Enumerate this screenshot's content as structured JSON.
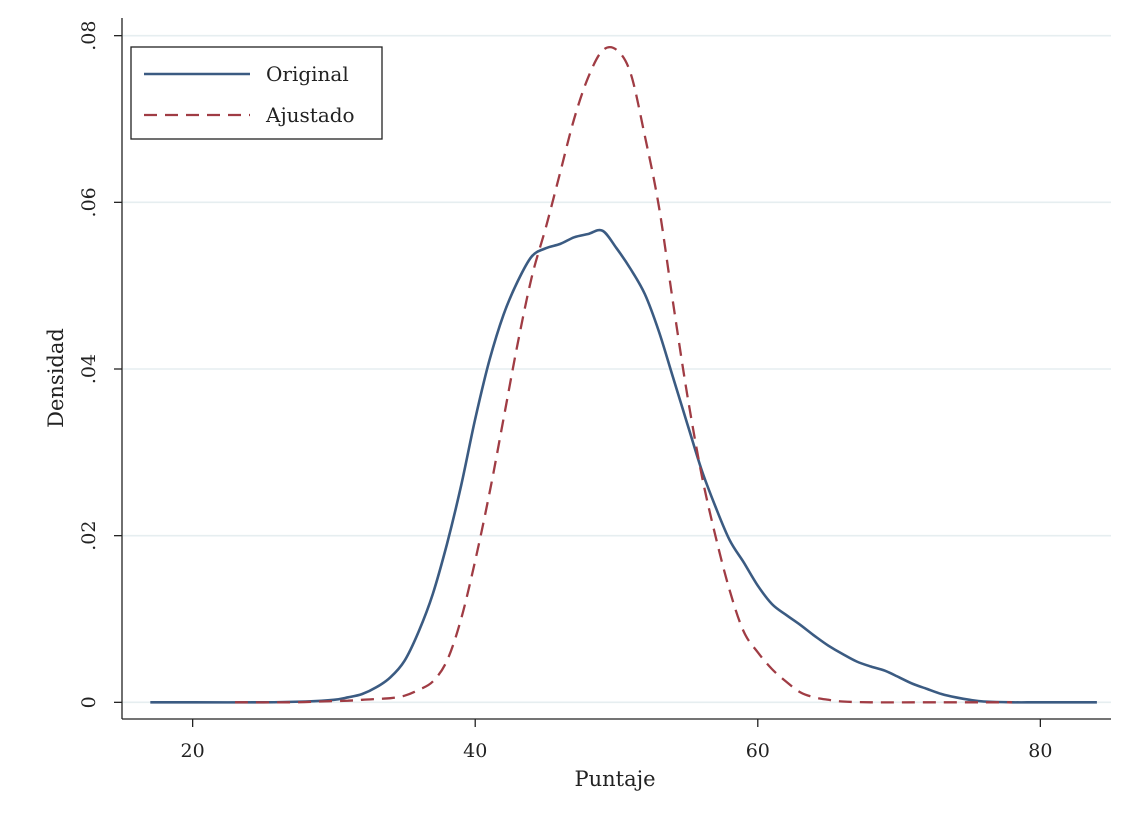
{
  "chart_data": {
    "type": "line",
    "title": "",
    "xlabel": "Puntaje",
    "ylabel": "Densidad",
    "xlim": [
      15,
      85
    ],
    "ylim": [
      -0.002,
      0.082
    ],
    "xticks": [
      20,
      40,
      60,
      80
    ],
    "xtick_labels": [
      "20",
      "40",
      "60",
      "80"
    ],
    "yticks": [
      0,
      0.02,
      0.04,
      0.06,
      0.08
    ],
    "ytick_labels": [
      "0",
      ".02",
      ".04",
      ".06",
      ".08"
    ],
    "grid": "horizontal",
    "legend_position": "top-left",
    "series": [
      {
        "name": "Original",
        "color": "#3b5b82",
        "style": "solid",
        "points": [
          [
            17,
            0
          ],
          [
            20,
            0
          ],
          [
            25,
            0
          ],
          [
            28,
            0.0001
          ],
          [
            30,
            0.0003
          ],
          [
            31,
            0.0006
          ],
          [
            32,
            0.001
          ],
          [
            33,
            0.0018
          ],
          [
            34,
            0.003
          ],
          [
            35,
            0.005
          ],
          [
            36,
            0.0085
          ],
          [
            37,
            0.013
          ],
          [
            38,
            0.019
          ],
          [
            39,
            0.026
          ],
          [
            40,
            0.034
          ],
          [
            41,
            0.041
          ],
          [
            42,
            0.0465
          ],
          [
            43,
            0.0505
          ],
          [
            44,
            0.0535
          ],
          [
            45,
            0.0545
          ],
          [
            46,
            0.055
          ],
          [
            47,
            0.0558
          ],
          [
            48,
            0.0562
          ],
          [
            49,
            0.0566
          ],
          [
            50,
            0.0545
          ],
          [
            51,
            0.052
          ],
          [
            52,
            0.049
          ],
          [
            53,
            0.0445
          ],
          [
            54,
            0.039
          ],
          [
            55,
            0.0335
          ],
          [
            56,
            0.028
          ],
          [
            57,
            0.0235
          ],
          [
            58,
            0.0195
          ],
          [
            59,
            0.0168
          ],
          [
            60,
            0.014
          ],
          [
            61,
            0.0118
          ],
          [
            62,
            0.0105
          ],
          [
            63,
            0.0093
          ],
          [
            64,
            0.008
          ],
          [
            65,
            0.0068
          ],
          [
            66,
            0.0058
          ],
          [
            67,
            0.0049
          ],
          [
            68,
            0.0043
          ],
          [
            69,
            0.0038
          ],
          [
            70,
            0.003
          ],
          [
            71,
            0.0022
          ],
          [
            72,
            0.0016
          ],
          [
            73,
            0.001
          ],
          [
            74,
            0.0006
          ],
          [
            75,
            0.0003
          ],
          [
            76,
            0.0001
          ],
          [
            78,
            0
          ],
          [
            80,
            0
          ],
          [
            84,
            0
          ]
        ]
      },
      {
        "name": "Ajustado",
        "color": "#a03c44",
        "style": "dashed",
        "points": [
          [
            23,
            0
          ],
          [
            27,
            0
          ],
          [
            29,
            0.0001
          ],
          [
            31,
            0.0002
          ],
          [
            32,
            0.0003
          ],
          [
            33,
            0.0004
          ],
          [
            34,
            0.0005
          ],
          [
            35,
            0.0008
          ],
          [
            36,
            0.0015
          ],
          [
            37,
            0.0025
          ],
          [
            38,
            0.005
          ],
          [
            39,
            0.01
          ],
          [
            40,
            0.017
          ],
          [
            41,
            0.025
          ],
          [
            42,
            0.034
          ],
          [
            43,
            0.043
          ],
          [
            44,
            0.051
          ],
          [
            45,
            0.057
          ],
          [
            46,
            0.0635
          ],
          [
            47,
            0.07
          ],
          [
            48,
            0.075
          ],
          [
            49,
            0.0782
          ],
          [
            50,
            0.0783
          ],
          [
            51,
            0.0755
          ],
          [
            52,
            0.068
          ],
          [
            53,
            0.0595
          ],
          [
            54,
            0.048
          ],
          [
            55,
            0.037
          ],
          [
            56,
            0.0275
          ],
          [
            57,
            0.02
          ],
          [
            58,
            0.0135
          ],
          [
            59,
            0.0085
          ],
          [
            60,
            0.006
          ],
          [
            61,
            0.004
          ],
          [
            62,
            0.0025
          ],
          [
            63,
            0.0012
          ],
          [
            64,
            0.0006
          ],
          [
            65,
            0.0003
          ],
          [
            66,
            0.0001
          ],
          [
            68,
            0
          ],
          [
            72,
            0
          ],
          [
            78,
            0
          ]
        ]
      }
    ]
  }
}
